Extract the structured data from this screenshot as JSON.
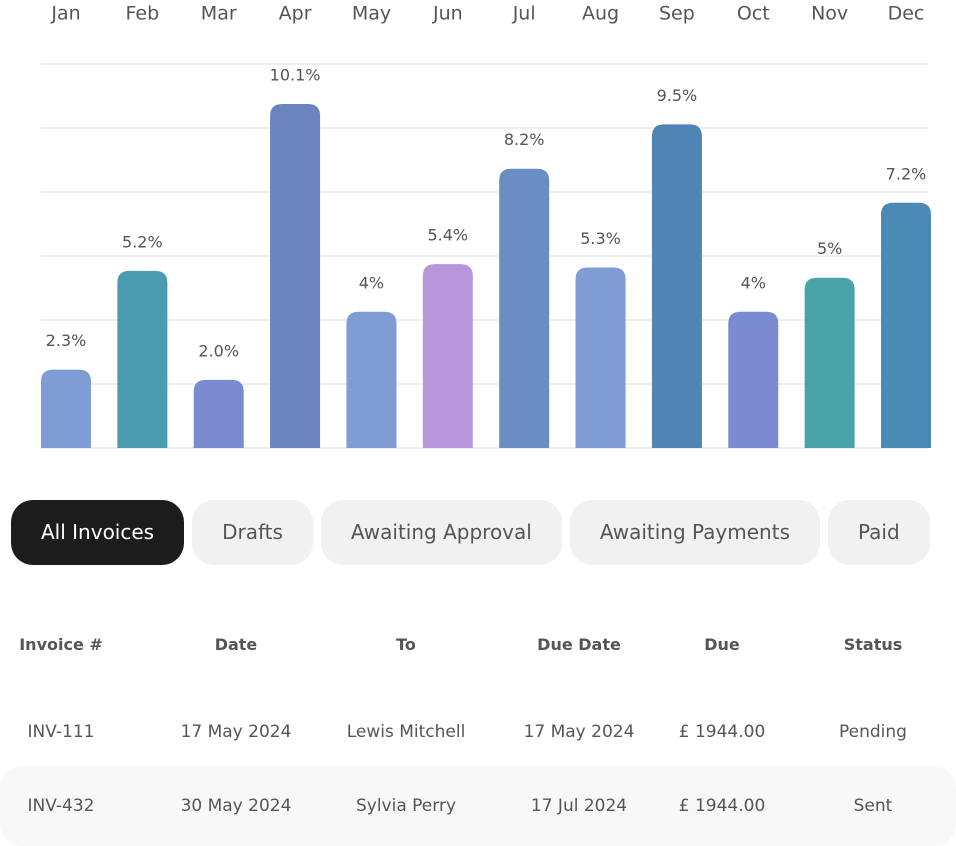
{
  "chart_data": {
    "type": "bar",
    "categories": [
      "Jan",
      "Feb",
      "Mar",
      "Apr",
      "May",
      "Jun",
      "Jul",
      "Aug",
      "Sep",
      "Oct",
      "Nov",
      "Dec"
    ],
    "values": [
      2.3,
      5.2,
      2.0,
      10.1,
      4,
      5.4,
      8.2,
      5.3,
      9.5,
      4,
      5,
      7.2
    ],
    "value_labels": [
      "2.3%",
      "5.2%",
      "2.0%",
      "10.1%",
      "4%",
      "5.4%",
      "8.2%",
      "5.3%",
      "9.5%",
      "4%",
      "5%",
      "7.2%"
    ],
    "colors": [
      "#7f9dd4",
      "#4a9bb0",
      "#7a8bd0",
      "#6a84c0",
      "#7f9dd4",
      "#b896dc",
      "#6a8ec4",
      "#7f9dd4",
      "#4f84b4",
      "#7a8bd0",
      "#4aa3a8",
      "#4a8ab4"
    ],
    "grid": true
  },
  "tabs": [
    "All Invoices",
    "Drafts",
    "Awaiting Approval",
    "Awaiting Payments",
    "Paid"
  ],
  "active_tab": 0,
  "table": {
    "headers": [
      "Invoice #",
      "Date",
      "To",
      "Due Date",
      "Due",
      "Status"
    ],
    "rows": [
      [
        "INV-111",
        "17 May 2024",
        "Lewis Mitchell",
        "17 May 2024",
        "£ 1944.00",
        "Pending"
      ],
      [
        "INV-432",
        "30 May 2024",
        "Sylvia Perry",
        "17 Jul 2024",
        "£ 1944.00",
        "Sent"
      ]
    ]
  }
}
